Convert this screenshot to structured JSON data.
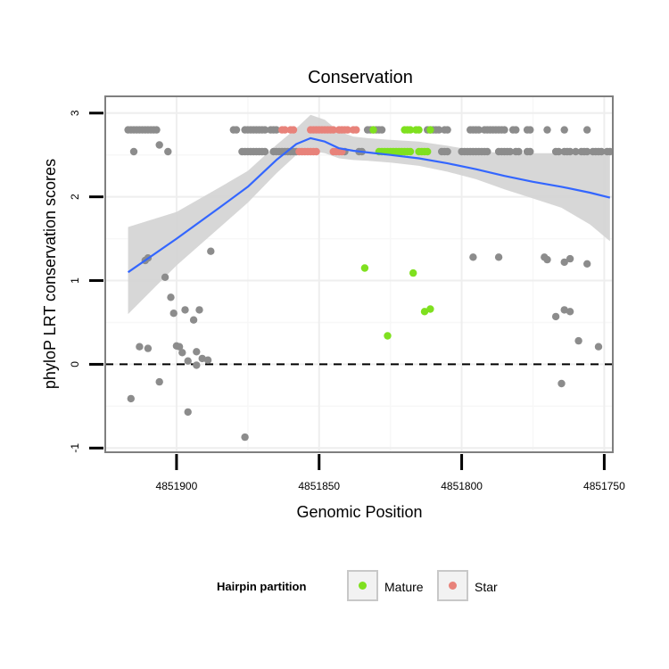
{
  "chart_data": {
    "type": "scatter",
    "title": "Conservation",
    "xlabel": "Genomic Position",
    "ylabel": "phyloP LRT conservation scores",
    "xlim": [
      4851925,
      4851747
    ],
    "ylim": [
      -1.05,
      3.2
    ],
    "x_reversed": true,
    "x_ticks": [
      4851900,
      4851850,
      4851800,
      4851750
    ],
    "x_tick_labels": [
      "4851900",
      "4851850",
      "4851800",
      "4851750"
    ],
    "y_ticks": [
      -1,
      0,
      1,
      2,
      3
    ],
    "y_tick_labels": [
      "-1",
      "0",
      "1",
      "2",
      "3"
    ],
    "reference_line": {
      "y": 0,
      "style": "dashed"
    },
    "legend": {
      "title": "Hairpin partition",
      "position": "bottom",
      "entries": [
        {
          "label": "Mature",
          "color": "#7FE01F"
        },
        {
          "label": "Star",
          "color": "#E8827A"
        }
      ]
    },
    "colors": {
      "other": "#8C8C8C",
      "Mature": "#7FE01F",
      "Star": "#E8827A",
      "smooth": "#3366FF",
      "band": "#D3D3D3"
    },
    "series": [
      {
        "name": "Other",
        "points": [
          [
            4851917,
            2.8
          ],
          [
            4851916,
            2.8
          ],
          [
            4851915,
            2.8
          ],
          [
            4851914,
            2.8
          ],
          [
            4851913,
            2.8
          ],
          [
            4851912,
            2.8
          ],
          [
            4851911,
            2.8
          ],
          [
            4851910,
            2.8
          ],
          [
            4851909,
            2.8
          ],
          [
            4851908,
            2.8
          ],
          [
            4851907,
            2.8
          ],
          [
            4851880,
            2.8
          ],
          [
            4851879,
            2.8
          ],
          [
            4851876,
            2.8
          ],
          [
            4851875,
            2.8
          ],
          [
            4851874,
            2.8
          ],
          [
            4851873,
            2.8
          ],
          [
            4851872,
            2.8
          ],
          [
            4851871,
            2.8
          ],
          [
            4851870,
            2.8
          ],
          [
            4851869,
            2.8
          ],
          [
            4851867,
            2.8
          ],
          [
            4851866,
            2.8
          ],
          [
            4851865,
            2.8
          ],
          [
            4851833,
            2.8
          ],
          [
            4851832,
            2.8
          ],
          [
            4851831,
            2.8
          ],
          [
            4851830,
            2.8
          ],
          [
            4851829,
            2.8
          ],
          [
            4851828,
            2.8
          ],
          [
            4851812,
            2.8
          ],
          [
            4851811,
            2.8
          ],
          [
            4851810,
            2.8
          ],
          [
            4851809,
            2.8
          ],
          [
            4851808,
            2.8
          ],
          [
            4851806,
            2.8
          ],
          [
            4851805,
            2.8
          ],
          [
            4851797,
            2.8
          ],
          [
            4851796,
            2.8
          ],
          [
            4851795,
            2.8
          ],
          [
            4851794,
            2.8
          ],
          [
            4851792,
            2.8
          ],
          [
            4851791,
            2.8
          ],
          [
            4851790,
            2.8
          ],
          [
            4851789,
            2.8
          ],
          [
            4851788,
            2.8
          ],
          [
            4851787,
            2.8
          ],
          [
            4851786,
            2.8
          ],
          [
            4851785,
            2.8
          ],
          [
            4851782,
            2.8
          ],
          [
            4851781,
            2.8
          ],
          [
            4851777,
            2.8
          ],
          [
            4851776,
            2.8
          ],
          [
            4851770,
            2.8
          ],
          [
            4851764,
            2.8
          ],
          [
            4851756,
            2.8
          ],
          [
            4851915,
            2.54
          ],
          [
            4851877,
            2.54
          ],
          [
            4851876,
            2.54
          ],
          [
            4851875,
            2.54
          ],
          [
            4851874,
            2.54
          ],
          [
            4851873,
            2.54
          ],
          [
            4851872,
            2.54
          ],
          [
            4851871,
            2.54
          ],
          [
            4851870,
            2.54
          ],
          [
            4851869,
            2.54
          ],
          [
            4851866,
            2.54
          ],
          [
            4851865,
            2.54
          ],
          [
            4851864,
            2.54
          ],
          [
            4851863,
            2.54
          ],
          [
            4851862,
            2.54
          ],
          [
            4851861,
            2.54
          ],
          [
            4851860,
            2.54
          ],
          [
            4851859,
            2.54
          ],
          [
            4851858,
            2.54
          ],
          [
            4851841,
            2.54
          ],
          [
            4851836,
            2.54
          ],
          [
            4851835,
            2.54
          ],
          [
            4851807,
            2.54
          ],
          [
            4851806,
            2.54
          ],
          [
            4851805,
            2.54
          ],
          [
            4851800,
            2.54
          ],
          [
            4851799,
            2.54
          ],
          [
            4851798,
            2.54
          ],
          [
            4851797,
            2.54
          ],
          [
            4851796,
            2.54
          ],
          [
            4851795,
            2.54
          ],
          [
            4851794,
            2.54
          ],
          [
            4851793,
            2.54
          ],
          [
            4851792,
            2.54
          ],
          [
            4851791,
            2.54
          ],
          [
            4851787,
            2.54
          ],
          [
            4851786,
            2.54
          ],
          [
            4851785,
            2.54
          ],
          [
            4851784,
            2.54
          ],
          [
            4851783,
            2.54
          ],
          [
            4851781,
            2.54
          ],
          [
            4851780,
            2.54
          ],
          [
            4851777,
            2.54
          ],
          [
            4851776,
            2.54
          ],
          [
            4851767,
            2.54
          ],
          [
            4851766,
            2.54
          ],
          [
            4851764,
            2.54
          ],
          [
            4851763,
            2.54
          ],
          [
            4851762,
            2.54
          ],
          [
            4851760,
            2.54
          ],
          [
            4851758,
            2.54
          ],
          [
            4851757,
            2.54
          ],
          [
            4851756,
            2.54
          ],
          [
            4851754,
            2.54
          ],
          [
            4851753,
            2.54
          ],
          [
            4851752,
            2.54
          ],
          [
            4851751,
            2.54
          ],
          [
            4851749,
            2.54
          ],
          [
            4851748,
            2.54
          ],
          [
            4851906,
            2.62
          ],
          [
            4851903,
            2.54
          ],
          [
            4851888,
            1.35
          ],
          [
            4851796,
            1.28
          ],
          [
            4851787,
            1.28
          ],
          [
            4851771,
            1.28
          ],
          [
            4851770,
            1.25
          ],
          [
            4851762,
            1.26
          ],
          [
            4851764,
            1.22
          ],
          [
            4851756,
            1.2
          ],
          [
            4851911,
            1.24
          ],
          [
            4851910,
            1.27
          ],
          [
            4851904,
            1.04
          ],
          [
            4851902,
            0.8
          ],
          [
            4851901,
            0.61
          ],
          [
            4851897,
            0.65
          ],
          [
            4851894,
            0.53
          ],
          [
            4851892,
            0.65
          ],
          [
            4851767,
            0.57
          ],
          [
            4851764,
            0.65
          ],
          [
            4851762,
            0.63
          ],
          [
            4851913,
            0.21
          ],
          [
            4851910,
            0.19
          ],
          [
            4851900,
            0.22
          ],
          [
            4851899,
            0.21
          ],
          [
            4851898,
            0.14
          ],
          [
            4851896,
            0.04
          ],
          [
            4851893,
            0.15
          ],
          [
            4851891,
            0.07
          ],
          [
            4851889,
            0.05
          ],
          [
            4851893,
            -0.01
          ],
          [
            4851759,
            0.28
          ],
          [
            4851752,
            0.21
          ],
          [
            4851916,
            -0.41
          ],
          [
            4851906,
            -0.21
          ],
          [
            4851896,
            -0.57
          ],
          [
            4851765,
            -0.23
          ],
          [
            4851876,
            -0.87
          ]
        ]
      },
      {
        "name": "Mature",
        "points": [
          [
            4851831,
            2.8
          ],
          [
            4851820,
            2.8
          ],
          [
            4851819,
            2.8
          ],
          [
            4851818,
            2.8
          ],
          [
            4851816,
            2.8
          ],
          [
            4851815,
            2.8
          ],
          [
            4851811,
            2.8
          ],
          [
            4851829,
            2.54
          ],
          [
            4851828,
            2.54
          ],
          [
            4851827,
            2.54
          ],
          [
            4851826,
            2.54
          ],
          [
            4851825,
            2.54
          ],
          [
            4851824,
            2.54
          ],
          [
            4851823,
            2.54
          ],
          [
            4851822,
            2.54
          ],
          [
            4851821,
            2.54
          ],
          [
            4851820,
            2.54
          ],
          [
            4851819,
            2.54
          ],
          [
            4851818,
            2.54
          ],
          [
            4851815,
            2.54
          ],
          [
            4851814,
            2.54
          ],
          [
            4851813,
            2.54
          ],
          [
            4851812,
            2.54
          ],
          [
            4851834,
            1.15
          ],
          [
            4851817,
            1.09
          ],
          [
            4851813,
            0.63
          ],
          [
            4851811,
            0.66
          ],
          [
            4851826,
            0.34
          ]
        ]
      },
      {
        "name": "Star",
        "points": [
          [
            4851863,
            2.8
          ],
          [
            4851862,
            2.8
          ],
          [
            4851860,
            2.8
          ],
          [
            4851859,
            2.8
          ],
          [
            4851853,
            2.8
          ],
          [
            4851852,
            2.8
          ],
          [
            4851851,
            2.8
          ],
          [
            4851850,
            2.8
          ],
          [
            4851849,
            2.8
          ],
          [
            4851848,
            2.8
          ],
          [
            4851847,
            2.8
          ],
          [
            4851846,
            2.8
          ],
          [
            4851845,
            2.8
          ],
          [
            4851843,
            2.8
          ],
          [
            4851842,
            2.8
          ],
          [
            4851841,
            2.8
          ],
          [
            4851840,
            2.8
          ],
          [
            4851838,
            2.8
          ],
          [
            4851837,
            2.8
          ],
          [
            4851857,
            2.54
          ],
          [
            4851856,
            2.54
          ],
          [
            4851855,
            2.54
          ],
          [
            4851854,
            2.54
          ],
          [
            4851853,
            2.54
          ],
          [
            4851852,
            2.54
          ],
          [
            4851851,
            2.54
          ],
          [
            4851845,
            2.54
          ],
          [
            4851844,
            2.54
          ],
          [
            4851843,
            2.54
          ],
          [
            4851842,
            2.54
          ]
        ]
      }
    ],
    "smooth": {
      "method": "loess",
      "x": [
        4851917,
        4851900,
        4851885,
        4851875,
        4851865,
        4851858,
        4851853,
        4851848,
        4851843,
        4851838,
        4851833,
        4851825,
        4851815,
        4851805,
        4851795,
        4851785,
        4851775,
        4851765,
        4851755,
        4851748
      ],
      "y": [
        1.1,
        1.5,
        1.87,
        2.12,
        2.44,
        2.63,
        2.7,
        2.66,
        2.58,
        2.55,
        2.53,
        2.5,
        2.46,
        2.4,
        2.33,
        2.25,
        2.18,
        2.12,
        2.05,
        1.99
      ],
      "lower": [
        0.6,
        1.18,
        1.63,
        1.93,
        2.28,
        2.5,
        2.55,
        2.52,
        2.46,
        2.44,
        2.43,
        2.41,
        2.37,
        2.3,
        2.21,
        2.09,
        1.98,
        1.87,
        1.67,
        1.47
      ],
      "upper": [
        1.64,
        1.82,
        2.11,
        2.31,
        2.62,
        2.82,
        2.98,
        2.92,
        2.78,
        2.72,
        2.7,
        2.68,
        2.66,
        2.61,
        2.55,
        2.52,
        2.52,
        2.52,
        2.55,
        2.58
      ]
    }
  }
}
